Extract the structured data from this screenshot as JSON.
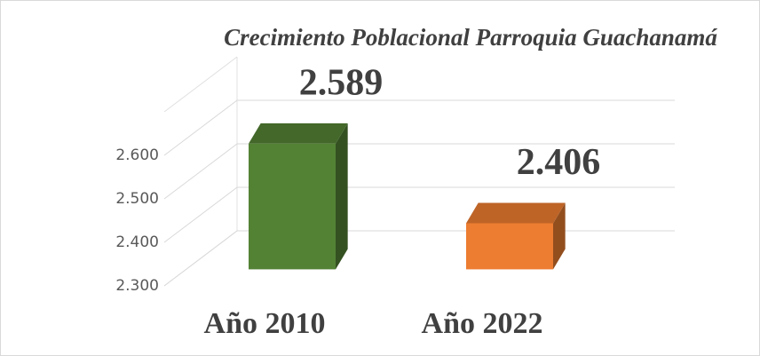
{
  "chart_data": {
    "type": "bar3d",
    "title": "Crecimiento Poblacional Parroquia Guachanamá",
    "categories": [
      "Año 2010",
      "Año 2022"
    ],
    "values": [
      2589,
      2406
    ],
    "value_labels": [
      "2.589",
      "2.406"
    ],
    "colors": [
      "#548235",
      "#ed7d31"
    ],
    "ylim": [
      2300,
      2700
    ],
    "yticks": [
      {
        "value": 2300,
        "label": "2.300"
      },
      {
        "value": 2400,
        "label": "2.400"
      },
      {
        "value": 2500,
        "label": "2.500"
      },
      {
        "value": 2600,
        "label": "2.600"
      }
    ],
    "grid": true
  }
}
